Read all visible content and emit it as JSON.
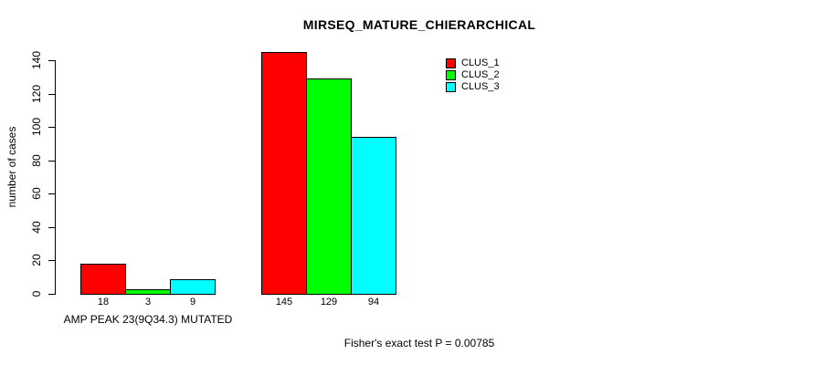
{
  "chart_data": {
    "type": "bar",
    "title": "MIRSEQ_MATURE_CHIERARCHICAL",
    "ylabel": "number of cases",
    "xlabel": "",
    "ylim": [
      0,
      140
    ],
    "yticks": [
      0,
      20,
      40,
      60,
      80,
      100,
      120,
      140
    ],
    "grid": false,
    "legend_position": "top-right",
    "bar_value_labels": true,
    "series": [
      {
        "name": "CLUS_1",
        "color": "#ff0000"
      },
      {
        "name": "CLUS_2",
        "color": "#00ff00"
      },
      {
        "name": "CLUS_3",
        "color": "#00ffff"
      }
    ],
    "groups": [
      {
        "label": "AMP PEAK 23(9Q34.3) MUTATED",
        "values": [
          18,
          3,
          9
        ]
      },
      {
        "label": "",
        "values": [
          145,
          129,
          94
        ]
      }
    ],
    "annotation": "Fisher's exact test P = 0.00785"
  }
}
